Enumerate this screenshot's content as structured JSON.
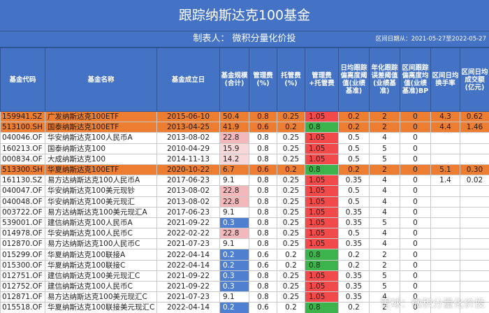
{
  "header": {
    "title": "跟踪纳斯达克100基金",
    "maker": "制表人：  微积分量化价投",
    "period": "区间日期从：2021-05-27至2022-05-27"
  },
  "columns": [
    "基金代码",
    "基金名称",
    "基金成立日",
    "基金规模(合计)",
    "管理费(%)",
    "托管费(%)",
    "管理费+托管费",
    "日均跟踪偏离度阈值(业绩基准)",
    "年化跟踪误差阈值(业绩基准)",
    "区间跟踪偏离度均值(业绩基准)BP",
    "区间日均换手率",
    "区间日均成交额(亿元)"
  ],
  "rows": [
    {
      "code": "159941.SZ",
      "name": "广发纳斯达克100ETF",
      "date": "2015-06-10",
      "size": "50.4",
      "mf": "0.8",
      "cf": "0.25",
      "total": "1.05",
      "te": "0.2",
      "tr": "2",
      "dev": "0",
      "turn": "4.3",
      "amt": "0.62",
      "highlight": true,
      "size_class": "",
      "total_class": "red",
      "dev_class": ""
    },
    {
      "code": "513100.SH",
      "name": "国泰纳斯达克100ETF",
      "date": "2013-04-25",
      "size": "41.9",
      "mf": "0.6",
      "cf": "0.2",
      "total": "0.8",
      "te": "0.2",
      "tr": "2",
      "dev": "0",
      "turn": "4.4",
      "amt": "1.46",
      "highlight": true,
      "size_class": "",
      "total_class": "green",
      "dev_class": ""
    },
    {
      "code": "040046.OF",
      "name": "华安纳斯达克100人民币A",
      "date": "2013-08-02",
      "size": "22.8",
      "mf": "0.8",
      "cf": "0.25",
      "total": "1.05",
      "te": "0.5",
      "tr": "4",
      "dev": "0",
      "turn": "",
      "amt": "",
      "highlight": false,
      "size_class": "mid",
      "total_class": "red",
      "dev_class": ""
    },
    {
      "code": "160213.OF",
      "name": "国泰纳斯达克100",
      "date": "2010-04-29",
      "size": "15.9",
      "mf": "0.8",
      "cf": "0.25",
      "total": "1.05",
      "te": "0.5",
      "tr": "5",
      "dev": "0",
      "turn": "",
      "amt": "",
      "highlight": false,
      "size_class": "light",
      "total_class": "red",
      "dev_class": ""
    },
    {
      "code": "000834.OF",
      "name": "大成纳斯达克100",
      "date": "2014-11-13",
      "size": "14.2",
      "mf": "0.8",
      "cf": "0.25",
      "total": "1.05",
      "te": "0.5",
      "tr": "5",
      "dev": "0",
      "turn": "",
      "amt": "",
      "highlight": false,
      "size_class": "light",
      "total_class": "red",
      "dev_class": ""
    },
    {
      "code": "513300.SH",
      "name": "华夏纳斯达克100ETF",
      "date": "2020-10-22",
      "size": "6.7",
      "mf": "0.6",
      "cf": "0.2",
      "total": "0.8",
      "te": "0.2",
      "tr": "2",
      "dev": "0",
      "turn": "5.1",
      "amt": "0.30",
      "highlight": true,
      "size_class": "",
      "total_class": "green",
      "dev_class": ""
    },
    {
      "code": "161130.SZ",
      "name": "易方达纳斯达克100人民币A",
      "date": "2017-06-23",
      "size": "9.1",
      "mf": "0.8",
      "cf": "0.25",
      "total": "1.05",
      "te": "0.35",
      "tr": "4",
      "dev": "0",
      "turn": "1.4",
      "amt": "0.02",
      "highlight": false,
      "size_class": "",
      "total_class": "red",
      "dev_class": ""
    },
    {
      "code": "040047.OF",
      "name": "华安纳斯达克100美元现钞",
      "date": "2013-08-02",
      "size": "22.8",
      "mf": "0.8",
      "cf": "0.25",
      "total": "1.05",
      "te": "0.5",
      "tr": "4",
      "dev": "0",
      "turn": "",
      "amt": "",
      "highlight": false,
      "size_class": "mid",
      "total_class": "red",
      "dev_class": ""
    },
    {
      "code": "040048.OF",
      "name": "华安纳斯达克100美元现汇",
      "date": "2013-08-02",
      "size": "22.8",
      "mf": "0.8",
      "cf": "0.25",
      "total": "1.05",
      "te": "0.5",
      "tr": "4",
      "dev": "0",
      "turn": "",
      "amt": "",
      "highlight": false,
      "size_class": "mid",
      "total_class": "red",
      "dev_class": ""
    },
    {
      "code": "003722.OF",
      "name": "易方达纳斯达克100美元现汇A",
      "date": "2017-06-23",
      "size": "9.1",
      "mf": "0.8",
      "cf": "0.25",
      "total": "1.05",
      "te": "0.35",
      "tr": "4",
      "dev": "0",
      "turn": "",
      "amt": "",
      "highlight": false,
      "size_class": "",
      "total_class": "red",
      "dev_class": ""
    },
    {
      "code": "539001.OF",
      "name": "建信纳斯达克100人民币A",
      "date": "2021-09-22",
      "size": "0.3",
      "mf": "0.8",
      "cf": "0.25",
      "total": "1.05",
      "te": "0.35",
      "tr": "5",
      "dev": "0",
      "turn": "",
      "amt": "",
      "highlight": false,
      "size_class": "blue",
      "total_class": "red",
      "dev_class": ""
    },
    {
      "code": "014978.OF",
      "name": "华安纳斯达克100人民币C",
      "date": "2022-02-22",
      "size": "22.8",
      "mf": "0.8",
      "cf": "0.25",
      "total": "1.05",
      "te": "0.5",
      "tr": "4",
      "dev": "0",
      "turn": "",
      "amt": "",
      "highlight": false,
      "size_class": "mid",
      "total_class": "red",
      "dev_class": ""
    },
    {
      "code": "012870.OF",
      "name": "易方达纳斯达克100人民币C",
      "date": "2021-07-23",
      "size": "9.1",
      "mf": "0.8",
      "cf": "0.25",
      "total": "1.05",
      "te": "0.35",
      "tr": "4",
      "dev": "0",
      "turn": "",
      "amt": "",
      "highlight": false,
      "size_class": "",
      "total_class": "red",
      "dev_class": ""
    },
    {
      "code": "015299.OF",
      "name": "华夏纳斯达克100联接A",
      "date": "2022-04-14",
      "size": "0.2",
      "mf": "0.6",
      "cf": "0.2",
      "total": "0.8",
      "te": "0.2",
      "tr": "2",
      "dev": "0",
      "turn": "",
      "amt": "",
      "highlight": false,
      "size_class": "blue",
      "total_class": "green",
      "dev_class": ""
    },
    {
      "code": "015300.OF",
      "name": "华夏纳斯达克100联接C",
      "date": "2022-04-14",
      "size": "0.2",
      "mf": "0.6",
      "cf": "0.2",
      "total": "0.8",
      "te": "0.2",
      "tr": "2",
      "dev": "0",
      "turn": "",
      "amt": "",
      "highlight": false,
      "size_class": "blue",
      "total_class": "green",
      "dev_class": ""
    },
    {
      "code": "012751.OF",
      "name": "建信纳斯达克100美元现汇C",
      "date": "2021-09-22",
      "size": "0.3",
      "mf": "0.8",
      "cf": "0.25",
      "total": "1.05",
      "te": "0.35",
      "tr": "5",
      "dev": "0",
      "turn": "",
      "amt": "",
      "highlight": false,
      "size_class": "blue",
      "total_class": "red",
      "dev_class": ""
    },
    {
      "code": "012752.OF",
      "name": "建信纳斯达克100人民币C",
      "date": "2021-09-22",
      "size": "0.3",
      "mf": "0.8",
      "cf": "0.25",
      "total": "1.05",
      "te": "0.35",
      "tr": "5",
      "dev": "0",
      "turn": "",
      "amt": "",
      "highlight": false,
      "size_class": "blue",
      "total_class": "red",
      "dev_class": ""
    },
    {
      "code": "012871.OF",
      "name": "易方达纳斯达克100美元现汇C",
      "date": "2021-07-23",
      "size": "9.1",
      "mf": "0.8",
      "cf": "0.25",
      "total": "1.05",
      "te": "0.35",
      "tr": "4",
      "dev": "0",
      "turn": "",
      "amt": "",
      "highlight": false,
      "size_class": "",
      "total_class": "red",
      "dev_class": ""
    },
    {
      "code": "015518.OF",
      "name": "华夏纳斯达克100联接美元现汇C",
      "date": "2022-04-14",
      "size": "0.2",
      "mf": "0.6",
      "cf": "0.2",
      "total": "0.8",
      "te": "0.2",
      "tr": "2",
      "dev": "0",
      "turn": "",
      "amt": "",
      "highlight": false,
      "size_class": "blue",
      "total_class": "green",
      "dev_class": ""
    },
    {
      "code": "012753.OF",
      "name": "建信纳斯达克100美元现汇C",
      "date": "2021-09-22",
      "size": "0.3",
      "mf": "0.8",
      "cf": "0.25",
      "total": "1.05",
      "te": "0.35",
      "tr": "5",
      "dev": "0",
      "turn": "",
      "amt": "",
      "highlight": false,
      "size_class": "blue",
      "total_class": "red",
      "dev_class": "blue"
    }
  ],
  "watermark": "雪球：微积分量化价投",
  "colors": {
    "header": "#4472c4",
    "highlight": "#ed7d31",
    "red": "#f24a4a",
    "green": "#3cb44b",
    "blue": "#4f7fd1"
  }
}
